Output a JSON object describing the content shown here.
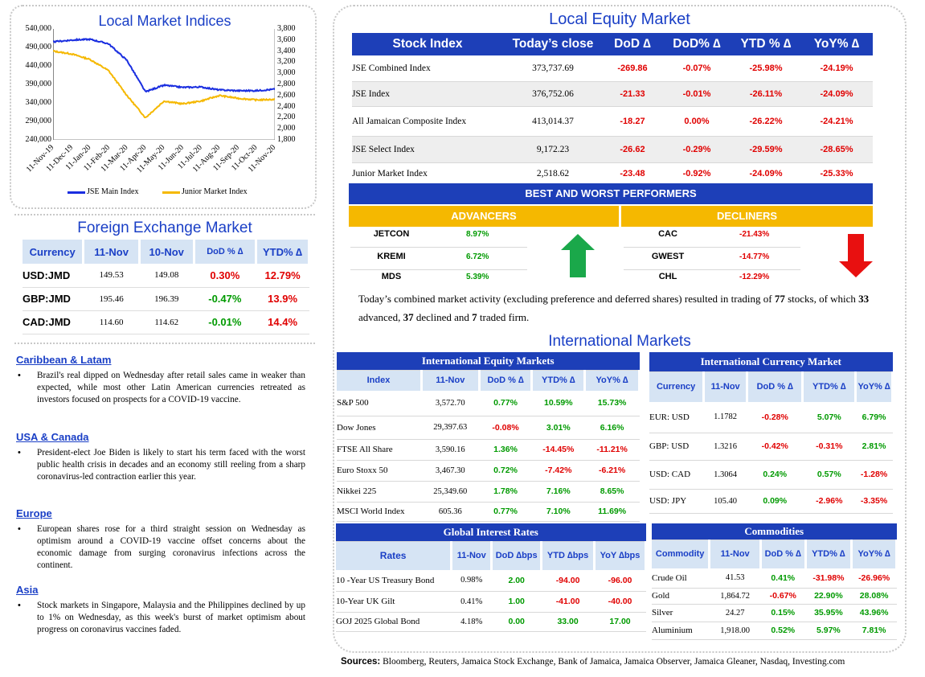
{
  "chart": {
    "title": "Local Market Indices",
    "left_ticks": [
      "540,000",
      "490,000",
      "440,000",
      "390,000",
      "340,000",
      "290,000",
      "240,000"
    ],
    "right_ticks": [
      "3,800",
      "3,600",
      "3,400",
      "3,200",
      "3,000",
      "2,800",
      "2,600",
      "2,400",
      "2,200",
      "2,000",
      "1,800"
    ],
    "x_ticks": [
      "11-Nov-19",
      "11-Dec-19",
      "11-Jan-20",
      "11-Feb-20",
      "11-Mar-20",
      "11-Apr-20",
      "11-May-20",
      "11-Jun-20",
      "11-Jul-20",
      "11-Aug-20",
      "11-Sep-20",
      "11-Oct-20",
      "11-Nov-20"
    ],
    "legend_main": "JSE Main Index",
    "legend_junior": "Junior Market Index",
    "color_main": "#1a2ee0",
    "color_junior": "#f5b800"
  },
  "chart_data": {
    "type": "line",
    "title": "Local Market Indices",
    "x": [
      "11-Nov-19",
      "11-Dec-19",
      "11-Jan-20",
      "11-Feb-20",
      "11-Mar-20",
      "11-Apr-20",
      "11-May-20",
      "11-Jun-20",
      "11-Jul-20",
      "11-Aug-20",
      "11-Sep-20",
      "11-Oct-20",
      "11-Nov-20"
    ],
    "ylim_left": [
      240000,
      540000
    ],
    "ylim_right": [
      1800,
      3800
    ],
    "series": [
      {
        "name": "JSE Main Index",
        "axis": "left",
        "values": [
          505000,
          510000,
          512000,
          500000,
          455000,
          370000,
          388000,
          382000,
          383000,
          375000,
          373000,
          373000,
          377000
        ]
      },
      {
        "name": "Junior Market Index",
        "axis": "right",
        "values": [
          3400,
          3350,
          3250,
          3050,
          2600,
          2200,
          2500,
          2450,
          2500,
          2600,
          2550,
          2520,
          2530
        ]
      }
    ]
  },
  "fx": {
    "title": "Foreign Exchange Market",
    "headers": [
      "Currency",
      "11-Nov",
      "10-Nov",
      "DoD % ∆",
      "YTD% ∆"
    ],
    "rows": [
      {
        "cur": "USD:JMD",
        "a": "149.53",
        "b": "149.08",
        "dod": "0.30%",
        "ytd": "12.79%",
        "dod_c": "rd",
        "ytd_c": "rd"
      },
      {
        "cur": "GBP:JMD",
        "a": "195.46",
        "b": "196.39",
        "dod": "-0.47%",
        "ytd": "13.9%",
        "dod_c": "gr",
        "ytd_c": "rd"
      },
      {
        "cur": "CAD:JMD",
        "a": "114.60",
        "b": "114.62",
        "dod": "-0.01%",
        "ytd": "14.4%",
        "dod_c": "gr",
        "ytd_c": "rd"
      }
    ]
  },
  "news": [
    {
      "h": "Caribbean & Latam",
      "p": "Brazil's real dipped on Wednesday after retail sales came in weaker than expected, while most other Latin American currencies retreated as investors focused on prospects for a COVID-19 vaccine."
    },
    {
      "h": "USA & Canada",
      "p": "President-elect Joe Biden is likely to start his term faced with the worst public health crisis in decades and an economy still reeling from a sharp coronavirus-led contraction earlier this year."
    },
    {
      "h": "Europe",
      "p": "European shares rose for a third straight session on Wednesday as optimism around a COVID-19 vaccine offset concerns about the economic damage from surging coronavirus infections across the continent."
    },
    {
      "h": "Asia",
      "p": "Stock markets in Singapore, Malaysia and the Philippines declined by up to 1% on Wednesday, as this week's burst of market optimism about progress on coronavirus vaccines faded."
    }
  ],
  "equity": {
    "title": "Local Equity Market",
    "headers": [
      "Stock Index",
      "Today’s close",
      "DoD ∆",
      "DoD% ∆",
      "YTD % ∆",
      "YoY% ∆"
    ],
    "rows": [
      [
        "JSE Combined Index",
        "373,737.69",
        "-269.86",
        "-0.07%",
        "-25.98%",
        "-24.19%"
      ],
      [
        "JSE Index",
        "376,752.06",
        "-21.33",
        "-0.01%",
        "-26.11%",
        "-24.09%"
      ],
      [
        "All Jamaican Composite Index",
        "413,014.37",
        "-18.27",
        "0.00%",
        "-26.22%",
        "-24.21%"
      ],
      [
        "JSE Select Index",
        "9,172.23",
        "-26.62",
        "-0.29%",
        "-29.59%",
        "-28.65%"
      ],
      [
        "Junior Market Index",
        "2,518.62",
        "-23.48",
        "-0.92%",
        "-24.09%",
        "-25.33%"
      ]
    ]
  },
  "performers": {
    "banner": "BEST AND WORST PERFORMERS",
    "adv_label": "ADVANCERS",
    "dec_label": "DECLINERS",
    "advancers": [
      [
        "JETCON",
        "8.97%"
      ],
      [
        "KREMI",
        "6.72%"
      ],
      [
        "MDS",
        "5.39%"
      ]
    ],
    "decliners": [
      [
        "CAC",
        "-21.43%"
      ],
      [
        "GWEST",
        "-14.77%"
      ],
      [
        "CHL",
        "-12.29%"
      ]
    ]
  },
  "summary": {
    "t1": "Today’s combined market activity (excluding preference and deferred shares) resulted in trading of ",
    "n1": "77",
    "t2": " stocks, of which ",
    "n2": "33",
    "t3": " advanced, ",
    "n3": "37",
    "t4": " declined and ",
    "n4": "7",
    "t5": " traded firm."
  },
  "intl_title": "International Markets",
  "ieq": {
    "title": "International Equity Markets",
    "headers": [
      "Index",
      "11-Nov",
      "DoD % ∆",
      "YTD% ∆",
      "YoY% ∆"
    ],
    "rows": [
      [
        "S&P 500",
        "3,572.70",
        "0.77%",
        "10.59%",
        "15.73%"
      ],
      [
        "Dow Jones",
        "29,397.63",
        "-0.08%",
        "3.01%",
        "6.16%"
      ],
      [
        "FTSE All Share",
        "3,590.16",
        "1.36%",
        "-14.45%",
        "-11.21%"
      ],
      [
        "Euro Stoxx 50",
        "3,467.30",
        "0.72%",
        "-7.42%",
        "-6.21%"
      ],
      [
        "Nikkei 225",
        "25,349.60",
        "1.78%",
        "7.16%",
        "8.65%"
      ],
      [
        "MSCI World Index",
        "605.36",
        "0.77%",
        "7.10%",
        "11.69%"
      ]
    ]
  },
  "icur": {
    "title": "International Currency Market",
    "headers": [
      "Currency",
      "11-Nov",
      "DoD % ∆",
      "YTD% ∆",
      "YoY% ∆"
    ],
    "rows": [
      [
        "EUR: USD",
        "1.1782",
        "-0.28%",
        "5.07%",
        "6.79%"
      ],
      [
        "GBP: USD",
        "1.3216",
        "-0.42%",
        "-0.31%",
        "2.81%"
      ],
      [
        "USD: CAD",
        "1.3064",
        "0.24%",
        "0.57%",
        "-1.28%"
      ],
      [
        "USD: JPY",
        "105.40",
        "0.09%",
        "-2.96%",
        "-3.35%"
      ]
    ]
  },
  "rates": {
    "title": "Global Interest Rates",
    "headers": [
      "Rates",
      "11-Nov",
      "DoD ∆bps",
      "YTD ∆bps",
      "YoY ∆bps"
    ],
    "rows": [
      [
        "10 -Year US Treasury Bond",
        "0.98%",
        "2.00",
        "-94.00",
        "-96.00"
      ],
      [
        "10-Year UK Gilt",
        "0.41%",
        "1.00",
        "-41.00",
        "-40.00"
      ],
      [
        "GOJ 2025 Global Bond",
        "4.18%",
        "0.00",
        "33.00",
        "17.00"
      ]
    ]
  },
  "comm": {
    "title": "Commodities",
    "headers": [
      "Commodity",
      "11-Nov",
      "DoD % ∆",
      "YTD% ∆",
      "YoY% ∆"
    ],
    "rows": [
      [
        "Crude Oil",
        "41.53",
        "0.41%",
        "-31.98%",
        "-26.96%"
      ],
      [
        "Gold",
        "1,864.72",
        "-0.67%",
        "22.90%",
        "28.08%"
      ],
      [
        "Silver",
        "24.27",
        "0.15%",
        "35.95%",
        "43.96%"
      ],
      [
        "Aluminium",
        "1,918.00",
        "0.52%",
        "5.97%",
        "7.81%"
      ]
    ]
  },
  "sources": {
    "label": "Sources:",
    "text": " Bloomberg, Reuters, Jamaica Stock Exchange, Bank of Jamaica, Jamaica Observer, Jamaica Gleaner, Nasdaq, Investing.com"
  }
}
